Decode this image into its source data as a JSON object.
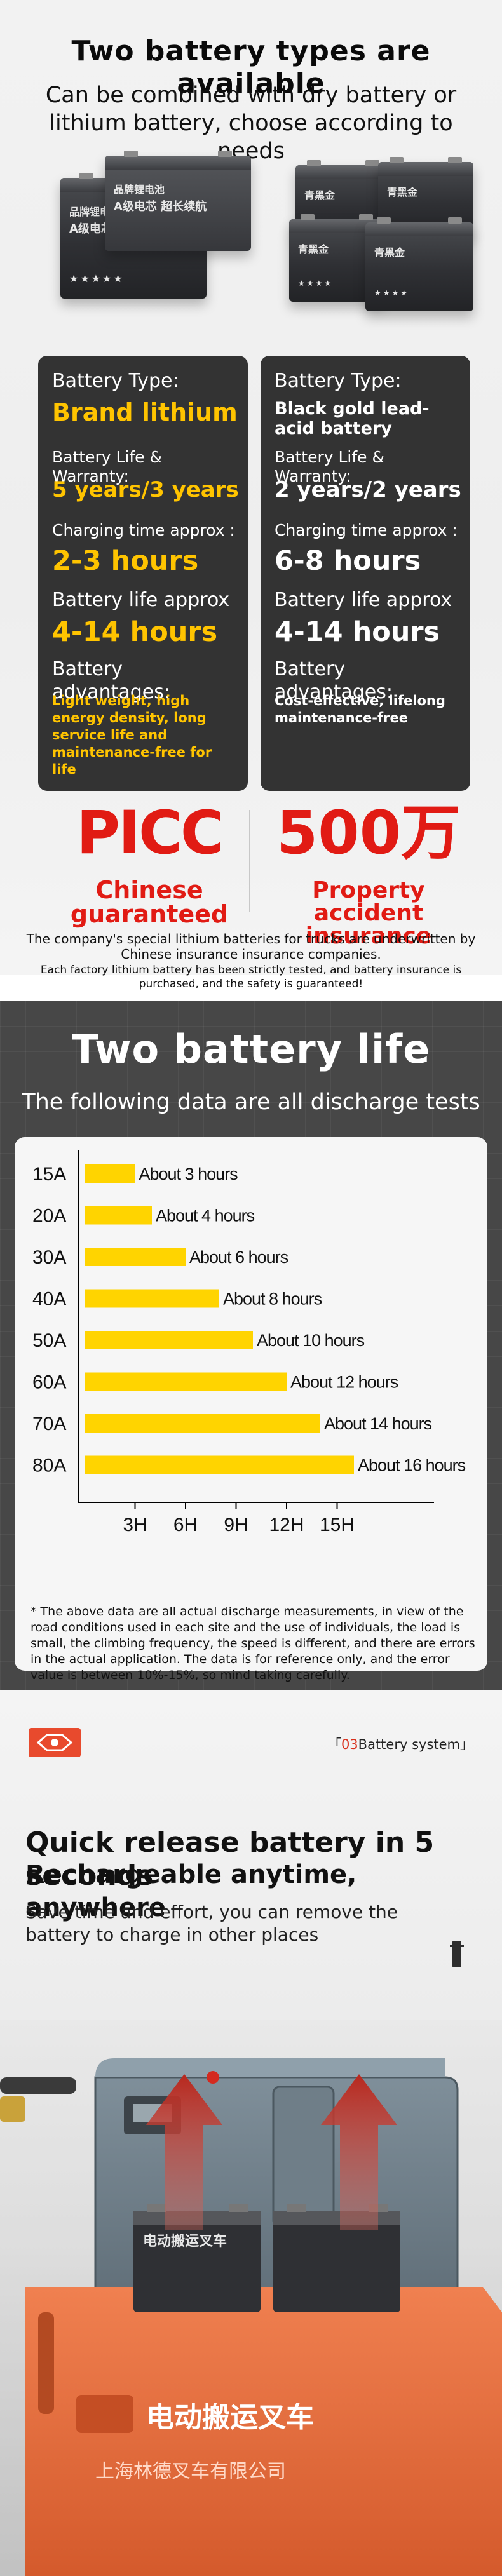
{
  "section1": {
    "title": "Two battery types are available",
    "subtitle": "Can be combined with dry battery or lithium battery, choose according to needs",
    "left_battery_label": "品牌锂电池",
    "left_battery_label2": "A级电芯  超长续航",
    "right_battery_label": "青黑金",
    "cards": [
      {
        "type_label": "Battery Type:",
        "type_value": "Brand lithium",
        "life_label": "Battery Life & Warranty:",
        "life_value": "5 years/3 years",
        "charge_label": "Charging time approx :",
        "charge_value": "2-3 hours",
        "endurance_label": "Battery life approx",
        "endurance_value": "4-14 hours",
        "adv_label": "Battery advantages:",
        "adv_value": "Light weight, high energy density, long service life and maintenance-free for life"
      },
      {
        "type_label": "Battery Type:",
        "type_value": "Black gold lead-acid battery",
        "life_label": "Battery Life & Warranty:",
        "life_value": "2 years/2 years",
        "charge_label": "Charging time approx :",
        "charge_value": "6-8 hours",
        "endurance_label": "Battery life approx",
        "endurance_value": "4-14 hours",
        "adv_label": "Battery advantages:",
        "adv_value": "Cost-effective, lifelong maintenance-free"
      }
    ],
    "picc_logo": "PICC",
    "picc_caption": "Chinese guaranteed",
    "amount": "500万",
    "amount_caption": "Property accident insurance",
    "note1": "The company's special lithium batteries for trucks are underwritten by Chinese insurance insurance companies.",
    "note2": "Each factory lithium battery has been strictly tested, and battery insurance is purchased, and the safety is guaranteed!"
  },
  "section2": {
    "title": "Two battery life",
    "subtitle": "The following data are all discharge tests",
    "disclaimer": "* The above data are all actual discharge measurements, in view of the road conditions used in each site and the use of individuals, the load is small, the climbing frequency, the speed is different, and there are errors in the actual application. The data is for reference only, and the error value is between 10%-15%, so mind taking carefully."
  },
  "chart_data": {
    "type": "bar",
    "orientation": "horizontal",
    "categories": [
      "15A",
      "20A",
      "30A",
      "40A",
      "50A",
      "60A",
      "70A",
      "80A"
    ],
    "values": [
      3,
      4,
      6,
      8,
      10,
      12,
      14,
      16
    ],
    "data_labels": [
      "About 3 hours",
      "About 4 hours",
      "About 6 hours",
      "About 8 hours",
      "About 10 hours",
      "About 12 hours",
      "About 14 hours",
      "About 16 hours"
    ],
    "x_ticks": [
      "3H",
      "6H",
      "9H",
      "12H",
      "15H"
    ],
    "x_tick_values": [
      3,
      6,
      9,
      12,
      15
    ],
    "xlim": [
      0,
      18
    ],
    "bar_color": "#ffd400",
    "title": "",
    "xlabel": "",
    "ylabel": ""
  },
  "section3": {
    "badge_number": "03",
    "badge_text": "Battery system",
    "heading1": "Quick release battery in 5 seconds",
    "heading2": "Rechargeable anytime, anywhere",
    "paragraph": "Save time and effort, you can remove the battery to charge in other places",
    "truck_text": "电动搬运叉车",
    "truck_subtext": "上海林德叉车有限公司"
  },
  "colors": {
    "accent_yellow": "#ffc400",
    "card_bg": "#333333",
    "brand_red": "#e11b14",
    "dark_bg": "#474747",
    "truck_orange": "#e86b3a"
  },
  "icons": [
    "brand-logo-icon",
    "up-arrow-icon",
    "battery-icon",
    "key-icon"
  ]
}
